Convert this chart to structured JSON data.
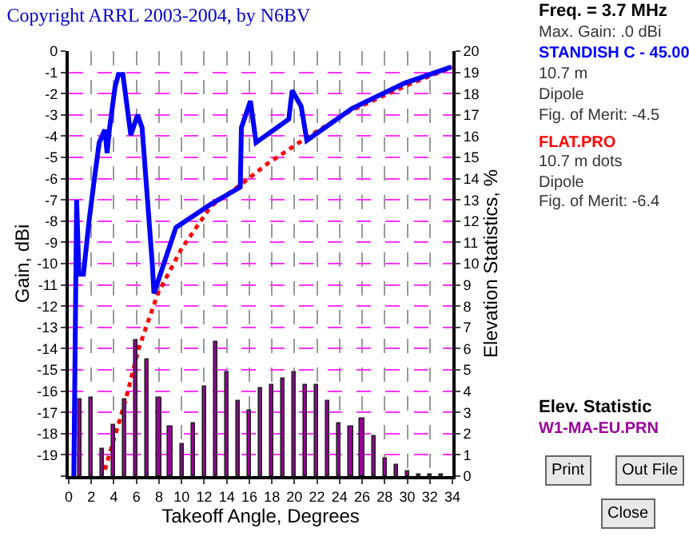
{
  "chart_data": {
    "type": "line",
    "title": "Copyright ARRL 2003-2004, by N6BV",
    "xlabel": "Takeoff Angle, Degrees",
    "ylabel": "Gain, dBi",
    "y2label": "Elevation Statistics, %",
    "xlim": [
      0,
      34
    ],
    "xticks": [
      0,
      2,
      4,
      6,
      8,
      10,
      12,
      14,
      16,
      18,
      20,
      22,
      24,
      26,
      28,
      30,
      32,
      34
    ],
    "ylim": [
      -20,
      0
    ],
    "yticks": [
      0,
      -1,
      -2,
      -3,
      -4,
      -5,
      -6,
      -7,
      -8,
      -9,
      -10,
      -11,
      -12,
      -13,
      -14,
      -15,
      -16,
      -17,
      -18,
      -19,
      {
        "value": -20,
        "label": null
      }
    ],
    "y2lim": [
      0,
      20
    ],
    "y2ticks": [
      0,
      1,
      2,
      3,
      4,
      5,
      6,
      7,
      8,
      9,
      10,
      11,
      12,
      13,
      14,
      15,
      16,
      17,
      18,
      19,
      20
    ],
    "grid": true,
    "marker": "none",
    "series": [
      {
        "name": "W1-MA-EU.PRN",
        "type": "bar",
        "axis": "y2",
        "color": "#990099",
        "x": [
          1,
          2,
          3,
          4,
          5,
          6,
          7,
          8,
          9,
          10,
          11,
          12,
          13,
          14,
          15,
          16,
          17,
          18,
          19,
          20,
          21,
          22,
          23,
          24,
          25,
          26,
          27,
          28,
          29,
          30,
          31,
          32,
          33
        ],
        "values": [
          3.6,
          3.7,
          1.3,
          2.4,
          3.6,
          6.4,
          5.5,
          3.7,
          2.3,
          1.5,
          2.5,
          4.2,
          6.3,
          4.9,
          3.5,
          3.1,
          4.1,
          4.3,
          4.6,
          4.9,
          4.3,
          4.3,
          3.5,
          2.5,
          2.3,
          2.7,
          1.9,
          0.8,
          0.5,
          0.2,
          0.1,
          0.1,
          0.1
        ]
      },
      {
        "name": "FLAT.PRO",
        "line_style": "dotted",
        "color": "#ff0000",
        "x": [
          3.2,
          5,
          6.2,
          7.9,
          10,
          12.6,
          15.2,
          17.6,
          21,
          25,
          30,
          34
        ],
        "values": [
          -19.7,
          -16.5,
          -14,
          -11.4,
          -9.3,
          -7.3,
          -6.3,
          -5.3,
          -4.1,
          -2.8,
          -1.6,
          -0.75
        ]
      },
      {
        "name": "STANDISH C - 45.00",
        "line_style": "solid",
        "color": "#0000ff",
        "x": [
          0.45,
          0.7,
          0.9,
          1.3,
          1.8,
          2.2,
          2.7,
          3.2,
          3.4,
          3.6,
          4.1,
          4.4,
          4.8,
          5.5,
          6.1,
          6.5,
          7.4,
          7.55,
          9.5,
          12.6,
          15.2,
          15.3,
          16.1,
          16.6,
          19.5,
          19.8,
          20.6,
          21.1,
          25.1,
          29.8,
          33.9
        ],
        "values": [
          -20,
          -7,
          -10.5,
          -10.5,
          -8,
          -6.3,
          -4.3,
          -3.7,
          -4.8,
          -3.7,
          -1.7,
          -1.1,
          -1.1,
          -3.95,
          -3,
          -3.6,
          -10,
          -11.4,
          -8.3,
          -7.2,
          -6.4,
          -3.6,
          -2.35,
          -4.3,
          -3.2,
          -1.85,
          -2.6,
          -4.2,
          -2.7,
          -1.5,
          -0.75
        ]
      }
    ],
    "annotations": [
      "Freq. = 3.7 MHz",
      "Max. Gain: .0 dBi",
      "10.7 m",
      "Dipole",
      "Fig. of Merit: -4.5",
      "10.7 m dots",
      "Dipole",
      "Fig. of Merit: -6.4",
      "Elev. Statistic",
      "Print",
      "Out File",
      "Close"
    ]
  }
}
